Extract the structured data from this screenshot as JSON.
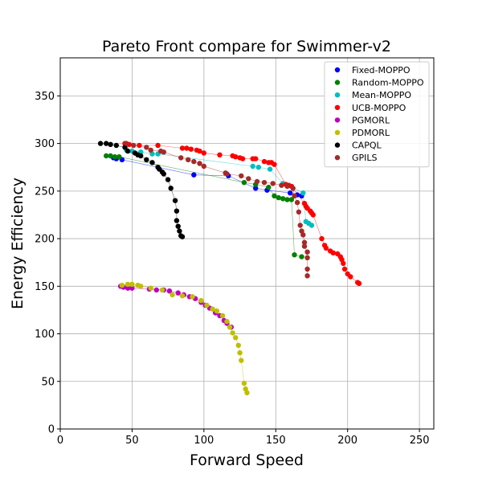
{
  "chart_data": {
    "type": "scatter",
    "title": "Pareto Front compare for Swimmer-v2",
    "xlabel": "Forward Speed",
    "ylabel": "Energy Efficiency",
    "xlim": [
      0,
      260
    ],
    "ylim": [
      0,
      390
    ],
    "xticks": [
      0,
      50,
      100,
      150,
      200,
      250
    ],
    "yticks": [
      0,
      50,
      100,
      150,
      200,
      250,
      300,
      350
    ],
    "grid": true,
    "legend_position": "top-right",
    "series": [
      {
        "name": "Fixed-MOPPO",
        "color": "#0000ff",
        "points": [
          [
            37,
            285
          ],
          [
            39,
            284
          ],
          [
            43,
            283
          ],
          [
            93,
            267
          ],
          [
            117,
            266
          ],
          [
            136,
            253
          ],
          [
            144,
            251
          ],
          [
            160,
            248
          ],
          [
            165,
            246
          ],
          [
            168,
            245
          ]
        ]
      },
      {
        "name": "Random-MOPPO",
        "color": "#008000",
        "points": [
          [
            32,
            287
          ],
          [
            35,
            287
          ],
          [
            38,
            286
          ],
          [
            41,
            286
          ],
          [
            128,
            259
          ],
          [
            136,
            257
          ],
          [
            145,
            254
          ],
          [
            149,
            245
          ],
          [
            152,
            243
          ],
          [
            155,
            242
          ],
          [
            158,
            241
          ],
          [
            161,
            241
          ],
          [
            163,
            183
          ],
          [
            168,
            181
          ]
        ]
      },
      {
        "name": "Mean-MOPPO",
        "color": "#00bfbf",
        "points": [
          [
            46,
            293
          ],
          [
            50,
            292
          ],
          [
            56,
            291
          ],
          [
            64,
            289
          ],
          [
            68,
            289
          ],
          [
            134,
            276
          ],
          [
            138,
            275
          ],
          [
            146,
            273
          ],
          [
            155,
            258
          ],
          [
            157,
            257
          ],
          [
            159,
            256
          ],
          [
            169,
            248
          ],
          [
            171,
            218
          ],
          [
            173,
            216
          ],
          [
            175,
            214
          ]
        ]
      },
      {
        "name": "UCB-MOPPO",
        "color": "#ff0000",
        "points": [
          [
            45,
            300
          ],
          [
            48,
            299
          ],
          [
            55,
            298
          ],
          [
            68,
            298
          ],
          [
            85,
            295
          ],
          [
            88,
            295
          ],
          [
            91,
            294
          ],
          [
            95,
            293
          ],
          [
            97,
            292
          ],
          [
            100,
            290
          ],
          [
            111,
            288
          ],
          [
            120,
            287
          ],
          [
            122,
            286
          ],
          [
            125,
            285
          ],
          [
            127,
            284
          ],
          [
            134,
            284
          ],
          [
            136,
            284
          ],
          [
            142,
            281
          ],
          [
            145,
            280
          ],
          [
            147,
            280
          ],
          [
            149,
            278
          ],
          [
            157,
            257
          ],
          [
            159,
            256
          ],
          [
            161,
            255
          ],
          [
            170,
            237
          ],
          [
            171,
            234
          ],
          [
            172,
            232
          ],
          [
            174,
            229
          ],
          [
            175,
            227
          ],
          [
            176,
            225
          ],
          [
            182,
            200
          ],
          [
            184,
            193
          ],
          [
            185,
            190
          ],
          [
            188,
            187
          ],
          [
            190,
            185
          ],
          [
            193,
            184
          ],
          [
            195,
            181
          ],
          [
            196,
            178
          ],
          [
            197,
            174
          ],
          [
            198,
            168
          ],
          [
            200,
            163
          ],
          [
            202,
            160
          ],
          [
            207,
            154
          ],
          [
            208,
            153
          ]
        ]
      },
      {
        "name": "PGMORL",
        "color": "#bf00bf",
        "points": [
          [
            42,
            150
          ],
          [
            44,
            149
          ],
          [
            47,
            148
          ],
          [
            50,
            148
          ],
          [
            62,
            147
          ],
          [
            67,
            146
          ],
          [
            72,
            146
          ],
          [
            76,
            145
          ],
          [
            82,
            143
          ],
          [
            86,
            141
          ],
          [
            90,
            139
          ],
          [
            94,
            137
          ],
          [
            98,
            133
          ],
          [
            101,
            130
          ],
          [
            104,
            127
          ],
          [
            108,
            122
          ],
          [
            111,
            119
          ],
          [
            114,
            114
          ],
          [
            116,
            111
          ],
          [
            119,
            107
          ]
        ]
      },
      {
        "name": "PDMORL",
        "color": "#bfbf00",
        "points": [
          [
            43,
            151
          ],
          [
            47,
            152
          ],
          [
            50,
            152
          ],
          [
            54,
            151
          ],
          [
            56,
            150
          ],
          [
            63,
            148
          ],
          [
            71,
            146
          ],
          [
            78,
            141
          ],
          [
            85,
            140
          ],
          [
            92,
            139
          ],
          [
            98,
            135
          ],
          [
            102,
            130
          ],
          [
            106,
            126
          ],
          [
            109,
            124
          ],
          [
            113,
            119
          ],
          [
            116,
            113
          ],
          [
            118,
            107
          ],
          [
            120,
            101
          ],
          [
            122,
            96
          ],
          [
            124,
            88
          ],
          [
            125,
            80
          ],
          [
            126,
            72
          ],
          [
            128,
            48
          ],
          [
            129,
            42
          ],
          [
            130,
            38
          ]
        ]
      },
      {
        "name": "CAPQL",
        "color": "#000000",
        "points": [
          [
            28,
            300
          ],
          [
            32,
            300
          ],
          [
            35,
            299
          ],
          [
            39,
            298
          ],
          [
            45,
            296
          ],
          [
            47,
            292
          ],
          [
            52,
            290
          ],
          [
            54,
            288
          ],
          [
            56,
            287
          ],
          [
            60,
            283
          ],
          [
            64,
            280
          ],
          [
            68,
            275
          ],
          [
            69,
            273
          ],
          [
            71,
            270
          ],
          [
            72,
            268
          ],
          [
            75,
            262
          ],
          [
            77,
            253
          ],
          [
            80,
            240
          ],
          [
            81,
            229
          ],
          [
            81,
            219
          ],
          [
            82,
            213
          ],
          [
            83,
            208
          ],
          [
            84,
            203
          ],
          [
            85,
            202
          ]
        ]
      },
      {
        "name": "GPILS",
        "color": "#a52a2a",
        "points": [
          [
            46,
            300
          ],
          [
            51,
            298
          ],
          [
            60,
            296
          ],
          [
            63,
            293
          ],
          [
            70,
            292
          ],
          [
            72,
            291
          ],
          [
            84,
            285
          ],
          [
            89,
            283
          ],
          [
            93,
            281
          ],
          [
            97,
            279
          ],
          [
            100,
            276
          ],
          [
            115,
            269
          ],
          [
            116,
            268
          ],
          [
            126,
            266
          ],
          [
            131,
            263
          ],
          [
            137,
            260
          ],
          [
            142,
            259
          ],
          [
            148,
            258
          ],
          [
            154,
            256
          ],
          [
            158,
            255
          ],
          [
            162,
            253
          ],
          [
            163,
            245
          ],
          [
            165,
            238
          ],
          [
            166,
            228
          ],
          [
            167,
            214
          ],
          [
            168,
            208
          ],
          [
            169,
            204
          ],
          [
            170,
            196
          ],
          [
            170,
            192
          ],
          [
            172,
            186
          ],
          [
            172,
            180
          ],
          [
            172,
            168
          ],
          [
            172,
            161
          ]
        ]
      }
    ]
  }
}
